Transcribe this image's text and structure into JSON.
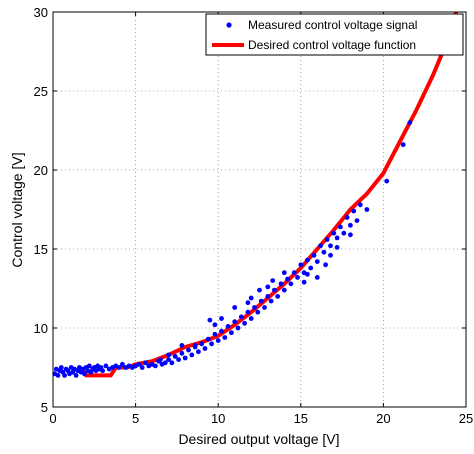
{
  "chart_data": {
    "type": "scatter",
    "xlabel": "Desired output voltage [V]",
    "ylabel": "Control voltage [V]",
    "xlim": [
      0,
      25
    ],
    "ylim": [
      5,
      30
    ],
    "xticks": [
      "0",
      "5",
      "10",
      "15",
      "20",
      "25"
    ],
    "yticks": [
      "5",
      "10",
      "15",
      "20",
      "25",
      "30"
    ],
    "grid": true,
    "legend_position": "top-right",
    "series": [
      {
        "name": "Measured control voltage signal",
        "type": "scatter",
        "color": "#0000ff",
        "points": [
          [
            0.1,
            7.1
          ],
          [
            0.2,
            7.4
          ],
          [
            0.3,
            7.0
          ],
          [
            0.4,
            7.3
          ],
          [
            0.5,
            7.5
          ],
          [
            0.6,
            7.2
          ],
          [
            0.7,
            7.0
          ],
          [
            0.8,
            7.4
          ],
          [
            0.9,
            7.3
          ],
          [
            1.0,
            7.1
          ],
          [
            1.1,
            7.5
          ],
          [
            1.2,
            7.2
          ],
          [
            1.3,
            7.4
          ],
          [
            1.4,
            7.0
          ],
          [
            1.5,
            7.3
          ],
          [
            1.6,
            7.5
          ],
          [
            1.7,
            7.2
          ],
          [
            1.8,
            7.4
          ],
          [
            1.9,
            7.1
          ],
          [
            2.0,
            7.5
          ],
          [
            2.1,
            7.3
          ],
          [
            2.2,
            7.6
          ],
          [
            2.3,
            7.2
          ],
          [
            2.4,
            7.4
          ],
          [
            2.5,
            7.5
          ],
          [
            2.6,
            7.3
          ],
          [
            2.7,
            7.6
          ],
          [
            2.8,
            7.4
          ],
          [
            2.9,
            7.5
          ],
          [
            3.0,
            7.3
          ],
          [
            3.2,
            7.6
          ],
          [
            3.4,
            7.4
          ],
          [
            3.6,
            7.5
          ],
          [
            3.8,
            7.6
          ],
          [
            4.0,
            7.5
          ],
          [
            4.2,
            7.7
          ],
          [
            4.4,
            7.5
          ],
          [
            4.6,
            7.6
          ],
          [
            4.8,
            7.5
          ],
          [
            5.0,
            7.6
          ],
          [
            5.2,
            7.7
          ],
          [
            5.4,
            7.5
          ],
          [
            5.6,
            7.8
          ],
          [
            5.8,
            7.6
          ],
          [
            6.0,
            7.7
          ],
          [
            6.2,
            7.6
          ],
          [
            6.4,
            7.9
          ],
          [
            6.6,
            7.7
          ],
          [
            6.8,
            7.8
          ],
          [
            7.0,
            8.0
          ],
          [
            7.2,
            7.8
          ],
          [
            7.4,
            8.2
          ],
          [
            7.6,
            8.0
          ],
          [
            7.8,
            8.4
          ],
          [
            8.0,
            8.1
          ],
          [
            8.2,
            8.6
          ],
          [
            8.4,
            8.3
          ],
          [
            8.6,
            8.8
          ],
          [
            8.8,
            8.5
          ],
          [
            9.0,
            9.0
          ],
          [
            9.2,
            8.7
          ],
          [
            9.4,
            9.3
          ],
          [
            9.6,
            9.0
          ],
          [
            9.8,
            9.6
          ],
          [
            10.0,
            9.2
          ],
          [
            10.2,
            9.8
          ],
          [
            10.4,
            9.4
          ],
          [
            10.6,
            10.1
          ],
          [
            10.8,
            9.7
          ],
          [
            11.0,
            10.4
          ],
          [
            11.2,
            10.0
          ],
          [
            11.4,
            10.7
          ],
          [
            11.6,
            10.3
          ],
          [
            11.8,
            11.0
          ],
          [
            12.0,
            10.6
          ],
          [
            12.2,
            11.3
          ],
          [
            12.4,
            11.0
          ],
          [
            12.6,
            11.7
          ],
          [
            12.8,
            11.3
          ],
          [
            13.0,
            12.0
          ],
          [
            13.2,
            11.7
          ],
          [
            13.4,
            12.4
          ],
          [
            13.6,
            12.0
          ],
          [
            13.8,
            12.8
          ],
          [
            14.0,
            12.4
          ],
          [
            14.2,
            13.1
          ],
          [
            14.4,
            12.8
          ],
          [
            14.6,
            13.5
          ],
          [
            14.8,
            13.2
          ],
          [
            15.0,
            14.0
          ],
          [
            15.2,
            13.5
          ],
          [
            15.4,
            14.3
          ],
          [
            15.6,
            13.8
          ],
          [
            15.8,
            14.6
          ],
          [
            16.0,
            14.2
          ],
          [
            16.2,
            15.2
          ],
          [
            16.4,
            14.8
          ],
          [
            16.6,
            15.6
          ],
          [
            16.8,
            15.2
          ],
          [
            17.0,
            16.0
          ],
          [
            17.2,
            15.7
          ],
          [
            17.4,
            16.4
          ],
          [
            17.6,
            16.0
          ],
          [
            17.8,
            17.0
          ],
          [
            18.0,
            16.5
          ],
          [
            18.2,
            17.4
          ],
          [
            18.4,
            16.8
          ],
          [
            18.6,
            17.8
          ],
          [
            19.0,
            17.5
          ],
          [
            20.2,
            19.3
          ],
          [
            21.2,
            21.6
          ],
          [
            21.6,
            23.0
          ],
          [
            15.4,
            13.4
          ],
          [
            16.0,
            13.2
          ],
          [
            16.5,
            14.0
          ],
          [
            8.6,
            8.9
          ],
          [
            10.2,
            10.6
          ],
          [
            11.8,
            11.6
          ],
          [
            12.5,
            12.4
          ],
          [
            9.8,
            10.2
          ],
          [
            9.5,
            10.5
          ],
          [
            13.0,
            12.6
          ],
          [
            14.0,
            13.5
          ],
          [
            15.2,
            12.9
          ],
          [
            16.8,
            14.6
          ],
          [
            17.2,
            15.1
          ],
          [
            18.0,
            15.9
          ],
          [
            7.0,
            8.3
          ],
          [
            7.8,
            8.9
          ],
          [
            6.5,
            8.0
          ],
          [
            11.0,
            11.3
          ],
          [
            12.0,
            11.9
          ],
          [
            13.3,
            13.0
          ]
        ]
      },
      {
        "name": "Desired control voltage function",
        "type": "line",
        "color": "#ff0000",
        "points": [
          [
            1.8,
            7.3
          ],
          [
            2.0,
            7.0
          ],
          [
            2.5,
            7.0
          ],
          [
            3.5,
            7.0
          ],
          [
            3.8,
            7.5
          ],
          [
            4.5,
            7.5
          ],
          [
            5.0,
            7.7
          ],
          [
            6.0,
            7.9
          ],
          [
            7.0,
            8.3
          ],
          [
            8.0,
            8.8
          ],
          [
            9.0,
            9.1
          ],
          [
            10.0,
            9.5
          ],
          [
            11.0,
            10.2
          ],
          [
            12.0,
            11.0
          ],
          [
            13.0,
            11.9
          ],
          [
            14.0,
            12.8
          ],
          [
            15.0,
            13.8
          ],
          [
            16.0,
            15.0
          ],
          [
            17.0,
            16.2
          ],
          [
            18.0,
            17.5
          ],
          [
            19.0,
            18.5
          ],
          [
            20.0,
            19.8
          ],
          [
            21.0,
            21.8
          ],
          [
            22.0,
            23.8
          ],
          [
            23.0,
            26.0
          ],
          [
            24.0,
            28.5
          ],
          [
            24.4,
            30.0
          ]
        ]
      }
    ]
  }
}
